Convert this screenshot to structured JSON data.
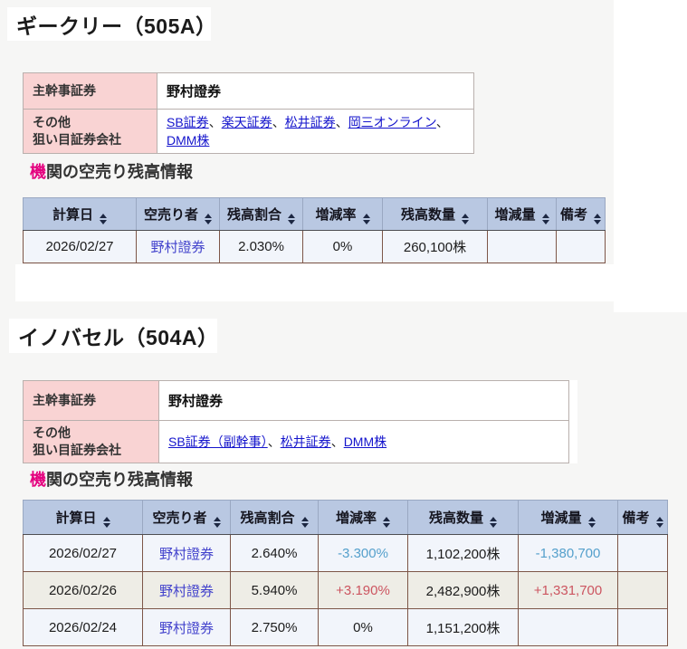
{
  "colors": {
    "accent_pink": "#e4007f",
    "info_link_blue": "#1414cc",
    "table_link_blue": "#4242cc",
    "negative_blue": "#55a0cc",
    "positive_red": "#cc5560",
    "table_header_bg": "#b9c8e2",
    "label_pink_bg": "#f9d3d3",
    "row_odd_bg": "#f2f5fb",
    "row_even_bg": "#eeede6",
    "table_border_brown": "#7d5648"
  },
  "icons": {
    "sort": "sort-asc-desc-icon"
  },
  "sections": [
    {
      "title": "ギークリー（505A）",
      "info": {
        "separator": "、",
        "rows": [
          {
            "label": "主幹事証券",
            "value": "野村證券"
          },
          {
            "label": "その他\n狙い目証券会社"
          }
        ],
        "links": [
          "SB証券",
          "楽天証券",
          "松井証券",
          "岡三オンライン",
          "DMM株"
        ]
      },
      "heading": {
        "accent": "機",
        "rest": "関の空売り残高情報"
      },
      "table": {
        "headers": [
          "計算日",
          "空売り者",
          "残高割合",
          "増減率",
          "残高数量",
          "増減量",
          "備考"
        ],
        "rows": [
          {
            "date": "2026/02/27",
            "seller": "野村證券",
            "ratio": "2.030%",
            "rate": "0%",
            "quantity": "260,100株",
            "change": "",
            "note": ""
          }
        ]
      }
    },
    {
      "title": "イノバセル（504A）",
      "info": {
        "separator": "、",
        "rows": [
          {
            "label": "主幹事証券",
            "value": "野村證券"
          },
          {
            "label": "その他\n狙い目証券会社"
          }
        ],
        "links": [
          "SB証券（副幹事）",
          "松井証券",
          "DMM株"
        ]
      },
      "heading": {
        "accent": "機",
        "rest": "関の空売り残高情報"
      },
      "table": {
        "headers": [
          "計算日",
          "空売り者",
          "残高割合",
          "増減率",
          "残高数量",
          "増減量",
          "備考"
        ],
        "rows": [
          {
            "date": "2026/02/27",
            "seller": "野村證券",
            "ratio": "2.640%",
            "rate": "-3.300%",
            "quantity": "1,102,200株",
            "change": "-1,380,700",
            "note": ""
          },
          {
            "date": "2026/02/26",
            "seller": "野村證券",
            "ratio": "5.940%",
            "rate": "+3.190%",
            "quantity": "2,482,900株",
            "change": "+1,331,700",
            "note": ""
          },
          {
            "date": "2026/02/24",
            "seller": "野村證券",
            "ratio": "2.750%",
            "rate": "0%",
            "quantity": "1,151,200株",
            "change": "",
            "note": ""
          }
        ]
      }
    }
  ]
}
